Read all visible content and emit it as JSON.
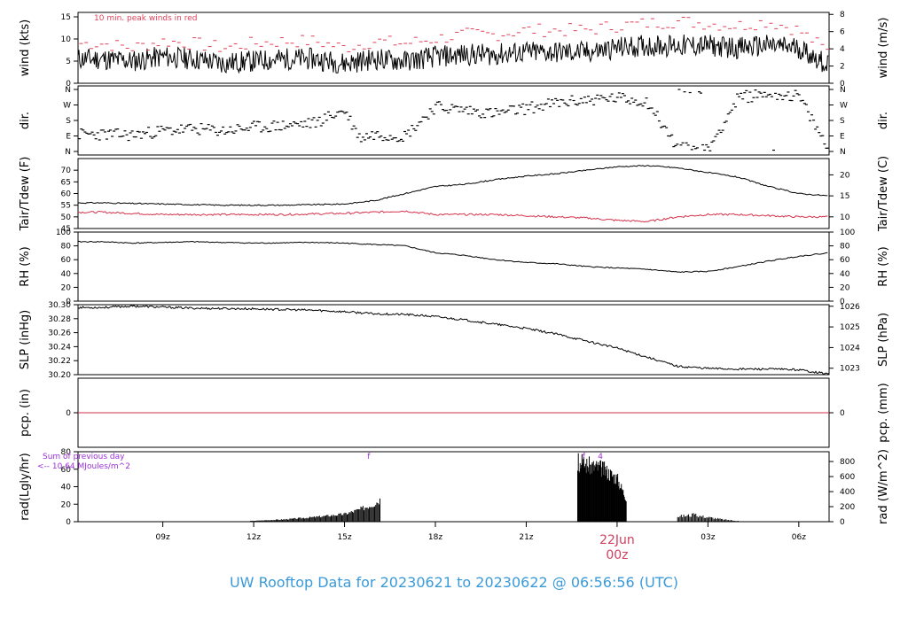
{
  "title": "UW Rooftop Data for 20230621  to  20230622 @ 06:56:56  (UTC)",
  "date_marker": {
    "day": "22Jun",
    "hour": "00z"
  },
  "colors": {
    "line": "#000000",
    "peak": "#e0405a",
    "tdew": "#d4304a",
    "purple": "#9b30d9",
    "footer": "#3a9ad9",
    "date": "#d04060"
  },
  "chart_data": [
    {
      "type": "line",
      "name": "wind",
      "ylabel_left": "wind (kts)",
      "ylabel_right": "wind (m/s)",
      "ylim": [
        0,
        16
      ],
      "left_ticks": [
        0,
        5,
        10,
        15
      ],
      "right_ticks": [
        0,
        2,
        4,
        6,
        8
      ],
      "annotation": "10 min. peak winds in red",
      "series": [
        {
          "name": "wind",
          "x": [
            7,
            8,
            9,
            10,
            11,
            12,
            13,
            14,
            15,
            16,
            17,
            18,
            19,
            20,
            21,
            22,
            23,
            24,
            25,
            26,
            27,
            28,
            29,
            30,
            31
          ],
          "values": [
            5.5,
            5,
            6,
            5.5,
            4.5,
            5,
            5.5,
            5.5,
            4.5,
            5.5,
            5,
            6,
            6.5,
            6.5,
            7,
            7,
            7,
            8,
            8.5,
            8.5,
            8.5,
            8,
            8.5,
            8,
            4
          ]
        },
        {
          "name": "peak",
          "x": [
            7,
            8,
            9,
            10,
            11,
            12,
            13,
            14,
            15,
            16,
            17,
            18,
            19,
            20,
            21,
            22,
            23,
            24,
            25,
            26,
            27,
            28,
            29,
            30,
            31
          ],
          "values": [
            9,
            8,
            9.5,
            9,
            8,
            9,
            9.5,
            9.5,
            8,
            9.5,
            9,
            10,
            11,
            11,
            12,
            12,
            12,
            13,
            13.5,
            14,
            13.5,
            13,
            14,
            12,
            7
          ]
        }
      ]
    },
    {
      "type": "scatter",
      "name": "dir",
      "ylabel_left": "dir.",
      "ylabel_right": "dir.",
      "ylim": [
        0,
        360
      ],
      "tick_labels": [
        "N",
        "E",
        "S",
        "W",
        "N"
      ],
      "tick_values": [
        0,
        90,
        180,
        270,
        360
      ],
      "x": [
        7,
        8,
        9,
        10,
        11,
        12,
        13,
        14,
        15,
        15.5,
        16,
        17,
        18,
        19,
        20,
        21,
        22,
        23,
        24,
        25,
        26,
        27,
        28,
        29,
        30,
        31
      ],
      "values": [
        100,
        95,
        120,
        130,
        120,
        140,
        150,
        165,
        240,
        80,
        100,
        90,
        260,
        240,
        220,
        250,
        280,
        300,
        310,
        290,
        20,
        10,
        310,
        340,
        320,
        5
      ]
    },
    {
      "type": "line",
      "name": "temp",
      "ylabel_left": "Tair/Tdew (F)",
      "ylabel_right": "Tair/Tdew (C)",
      "ylim": [
        45,
        75
      ],
      "left_ticks": [
        45,
        50,
        55,
        60,
        65,
        70
      ],
      "right_ticks": [
        10,
        15,
        20
      ],
      "series": [
        {
          "name": "Tair",
          "x": [
            7,
            9,
            11,
            13,
            15,
            16,
            17,
            18,
            19,
            20,
            21,
            22,
            23,
            24,
            25,
            26,
            27,
            28,
            29,
            30,
            31
          ],
          "values": [
            56,
            55.5,
            55,
            55,
            55.5,
            57,
            60,
            63,
            64,
            66,
            67.5,
            68.5,
            70,
            71.5,
            72,
            71,
            69,
            67,
            63,
            60,
            59
          ]
        },
        {
          "name": "Tdew",
          "x": [
            7,
            9,
            11,
            13,
            15,
            16,
            17,
            18,
            19,
            20,
            21,
            22,
            23,
            24,
            25,
            26,
            27,
            28,
            29,
            30,
            31
          ],
          "values": [
            52,
            51,
            51,
            51,
            51.5,
            52,
            52.5,
            51,
            51,
            51,
            50.5,
            50,
            49.5,
            48.5,
            48,
            50,
            51,
            51,
            50.5,
            50,
            50
          ]
        }
      ]
    },
    {
      "type": "line",
      "name": "rh",
      "ylabel_left": "RH (%)",
      "ylabel_right": "RH (%)",
      "ylim": [
        0,
        100
      ],
      "ticks": [
        0,
        20,
        40,
        60,
        80,
        100
      ],
      "series": [
        {
          "name": "RH",
          "x": [
            7,
            8,
            10,
            12,
            14,
            15,
            16,
            17,
            18,
            19,
            20,
            21,
            22,
            23,
            24,
            25,
            26,
            27,
            28,
            29,
            30,
            31
          ],
          "values": [
            86,
            84,
            86,
            84,
            85,
            84,
            82,
            80,
            70,
            66,
            60,
            56,
            54,
            50,
            48,
            46,
            42,
            43,
            50,
            58,
            65,
            70
          ]
        }
      ]
    },
    {
      "type": "line",
      "name": "slp",
      "ylabel_left": "SLP (inHg)",
      "ylabel_right": "SLP (hPa)",
      "ylim": [
        30.2,
        30.3
      ],
      "left_ticks": [
        30.2,
        30.22,
        30.24,
        30.26,
        30.28,
        30.3
      ],
      "right_ticks": [
        1023,
        1024,
        1025,
        1026
      ],
      "series": [
        {
          "name": "SLP",
          "x": [
            7,
            8,
            10,
            12,
            14,
            15,
            16,
            17,
            18,
            19,
            20,
            21,
            22,
            23,
            24,
            25,
            26,
            27,
            28,
            29,
            30,
            31
          ],
          "values": [
            30.296,
            30.298,
            30.295,
            30.294,
            30.292,
            30.29,
            30.287,
            30.286,
            30.283,
            30.278,
            30.272,
            30.266,
            30.258,
            30.248,
            30.238,
            30.225,
            30.212,
            30.209,
            30.208,
            30.208,
            30.207,
            30.201
          ]
        }
      ]
    },
    {
      "type": "line",
      "name": "pcp",
      "ylabel_left": "pcp. (in)",
      "ylabel_right": "pcp. (mm)",
      "ticks": [
        0
      ],
      "series": [
        {
          "name": "pcp",
          "x": [
            6.2,
            31
          ],
          "values": [
            0,
            0
          ]
        }
      ]
    },
    {
      "type": "bar",
      "name": "rad",
      "ylabel_left": "rad(Lgly/hr)",
      "ylabel_right": "rad (W/m^2)",
      "ylim": [
        0,
        80
      ],
      "left_ticks": [
        0,
        20,
        40,
        60,
        80
      ],
      "right_ticks": [
        0,
        200,
        400,
        600,
        800
      ],
      "annotation_lines": [
        "Sum of previous day",
        "<-- 10.64 MJoules/m^2"
      ],
      "markers": [
        "f",
        "4"
      ],
      "x": [
        11.9,
        13,
        14,
        15,
        15.5,
        16,
        16.2,
        22.7,
        23,
        23.5,
        24,
        24.3,
        25,
        25.5,
        26,
        26.5,
        27,
        27.5,
        28
      ],
      "values": [
        1,
        3,
        6,
        10,
        16,
        24,
        30,
        75,
        72,
        68,
        55,
        30,
        0,
        0,
        7,
        9,
        6,
        3,
        1
      ]
    }
  ],
  "x_axis": {
    "tick_labels": [
      "09z",
      "12z",
      "15z",
      "18z",
      "21z",
      "00z",
      "03z",
      "06z"
    ],
    "tick_hours": [
      9,
      12,
      15,
      18,
      21,
      24,
      27,
      30
    ],
    "xlim": [
      6.2,
      31.0
    ]
  }
}
